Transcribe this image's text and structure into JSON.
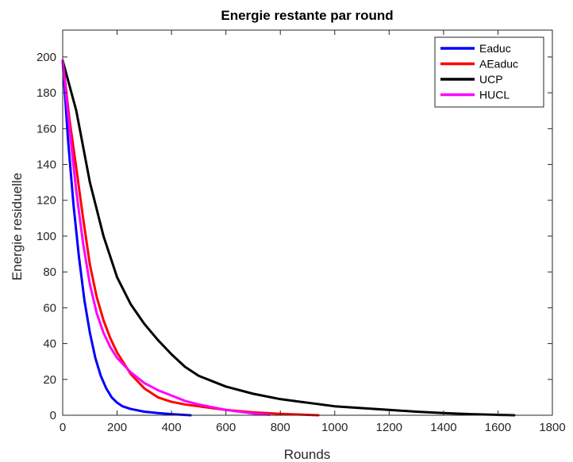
{
  "chart_data": {
    "type": "line",
    "title": "Energie restante par round",
    "xlabel": "Rounds",
    "ylabel": "Energie residuelle",
    "xlim": [
      0,
      1800
    ],
    "ylim": [
      0,
      215
    ],
    "xticks": [
      0,
      200,
      400,
      600,
      800,
      1000,
      1200,
      1400,
      1600,
      1800
    ],
    "yticks": [
      0,
      20,
      40,
      60,
      80,
      100,
      120,
      140,
      160,
      180,
      200
    ],
    "grid": false,
    "legend_position": "top-right",
    "series": [
      {
        "name": "Eaduc",
        "color": "#0000ff",
        "x": [
          0,
          20,
          40,
          60,
          80,
          100,
          120,
          140,
          160,
          180,
          200,
          220,
          250,
          300,
          350,
          400,
          470
        ],
        "y": [
          198,
          153,
          117,
          88,
          64,
          46,
          32,
          22,
          15,
          10,
          7,
          5,
          3.5,
          2,
          1.2,
          0.6,
          0
        ]
      },
      {
        "name": "AEaduc",
        "color": "#ff0000",
        "x": [
          0,
          25,
          50,
          75,
          100,
          125,
          150,
          175,
          200,
          250,
          300,
          350,
          400,
          450,
          500,
          600,
          700,
          800,
          940
        ],
        "y": [
          198,
          165,
          138,
          110,
          84,
          66,
          53,
          43,
          35,
          23,
          15,
          10,
          7.5,
          6,
          5,
          3,
          1.6,
          0.8,
          0
        ]
      },
      {
        "name": "UCP",
        "color": "#000000",
        "x": [
          0,
          50,
          100,
          150,
          200,
          250,
          300,
          350,
          400,
          450,
          500,
          550,
          600,
          700,
          800,
          900,
          1000,
          1100,
          1200,
          1300,
          1400,
          1500,
          1660
        ],
        "y": [
          198,
          170,
          130,
          100,
          77,
          62,
          51,
          42,
          34,
          27,
          22,
          19,
          16,
          12,
          9,
          7,
          5,
          4,
          3,
          2,
          1.2,
          0.6,
          0
        ]
      },
      {
        "name": "HUCL",
        "color": "#ff00ff",
        "x": [
          0,
          25,
          50,
          75,
          100,
          125,
          150,
          175,
          200,
          250,
          300,
          350,
          400,
          450,
          500,
          550,
          600,
          650,
          700,
          760
        ],
        "y": [
          198,
          160,
          125,
          96,
          73,
          57,
          46,
          38,
          32,
          24,
          18,
          14,
          11,
          8,
          6,
          4.5,
          3,
          2,
          1,
          0.3
        ]
      }
    ]
  }
}
